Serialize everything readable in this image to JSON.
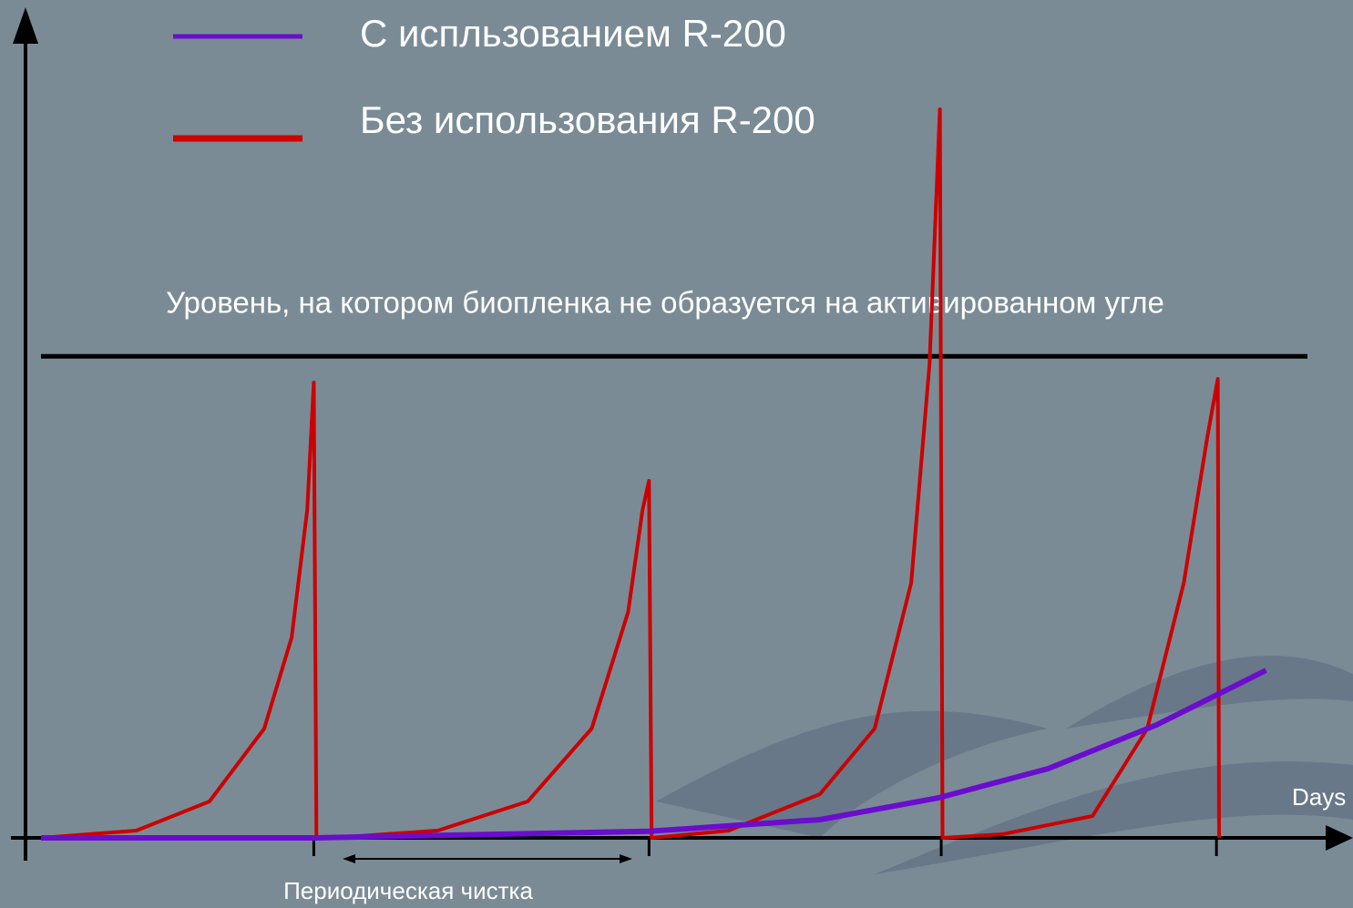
{
  "chart_data": {
    "type": "line",
    "x_label": "Days",
    "annotation": "Периодическая чистка",
    "threshold": {
      "value": 66.1,
      "label": "Уровень, на котором  биопленка не образуется на активированном угле",
      "color": "#000000"
    },
    "xlim": [
      0,
      101
    ],
    "ylim": [
      0,
      113
    ],
    "xticks": [
      22.1,
      47.8,
      70.2,
      91.3
    ],
    "series": [
      {
        "name": "С испльзованием R-200",
        "color": "#6a0dcc",
        "x": [
          1.2,
          22.1,
          47.8,
          60.9,
          70,
          78.4,
          86.7,
          95.1
        ],
        "y": [
          0,
          0,
          0.9,
          2.5,
          5.5,
          9.5,
          15.5,
          23
        ]
      },
      {
        "name": "Без использования R-200",
        "color": "#cc0000",
        "x": [
          1.2,
          8.5,
          14.1,
          18.3,
          20.4,
          21.6,
          22.1,
          22.3,
          null,
          23.5,
          31.6,
          38.5,
          43.4,
          46.2,
          47.3,
          47.8,
          48,
          53.9,
          60.9,
          65.1,
          67.9,
          69.3,
          70.1,
          70.3,
          74.9,
          81.8,
          86,
          88.8,
          90.6,
          91.4,
          91.5
        ],
        "y": [
          0,
          1,
          5,
          15,
          27.5,
          45,
          62.5,
          0,
          null,
          0,
          1,
          5,
          15,
          31,
          45,
          49,
          0,
          1,
          6,
          15,
          35,
          65,
          100,
          0,
          0.5,
          3,
          15,
          35,
          55,
          63,
          0
        ]
      }
    ]
  }
}
